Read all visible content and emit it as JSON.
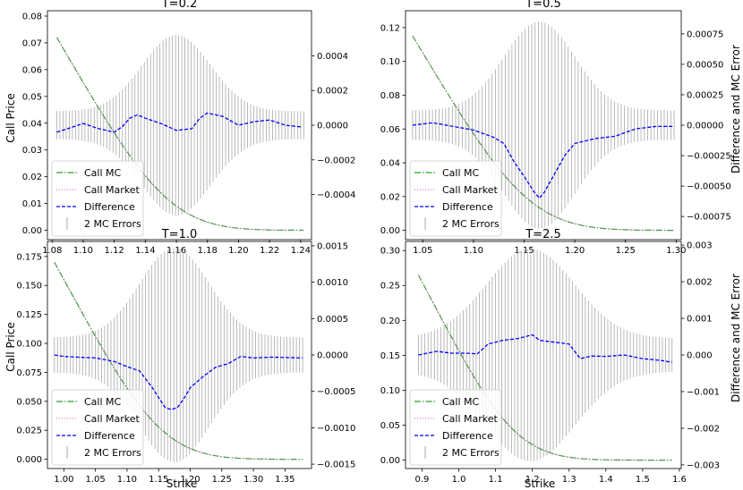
{
  "figure": {
    "left_ylabel": "Call Price",
    "right_ylabel": "Difference and MC Error",
    "xlabel": "Strike"
  },
  "legend": [
    {
      "key": "call_mc",
      "label": "Call MC",
      "color": "#2ca02c",
      "style": "dashdot"
    },
    {
      "key": "call_market",
      "label": "Call Market",
      "color": "#e377c2",
      "style": "dotted"
    },
    {
      "key": "difference",
      "label": "Difference",
      "color": "#0000ff",
      "style": "dashed"
    },
    {
      "key": "mc_errors",
      "label": "2 MC Errors",
      "color": "#808080",
      "style": "errorbar"
    }
  ],
  "chart_data": [
    {
      "type": "line",
      "title": "T=0.2",
      "xlabel": "",
      "ylabel": "Call Price",
      "y2label": "",
      "xlim": [
        1.077,
        1.247
      ],
      "xticks": [
        1.08,
        1.1,
        1.12,
        1.14,
        1.16,
        1.18,
        1.2,
        1.22,
        1.24
      ],
      "xtick_labels": [
        "1.08",
        "1.10",
        "1.12",
        "1.14",
        "1.16",
        "1.18",
        "1.20",
        "1.22",
        "1.24"
      ],
      "ylim": [
        -0.0035,
        0.082
      ],
      "yticks": [
        0.0,
        0.01,
        0.02,
        0.03,
        0.04,
        0.05,
        0.06,
        0.07,
        0.08
      ],
      "ytick_labels": [
        "0.00",
        "0.01",
        "0.02",
        "0.03",
        "0.04",
        "0.05",
        "0.06",
        "0.07",
        "0.08"
      ],
      "y2lim": [
        -0.00066,
        0.00066
      ],
      "y2ticks": [
        -0.0004,
        -0.0002,
        0.0,
        0.0002,
        0.0004
      ],
      "y2tick_labels": [
        "−0.0004",
        "−0.0002",
        "0.0000",
        "0.0002",
        "0.0004"
      ],
      "strike_range": [
        1.083,
        1.242
      ],
      "call_mc": {
        "s0": 1.155,
        "vol": 0.055,
        "T": 0.2
      },
      "error_bars": {
        "center": 1.16,
        "peak": 0.00052,
        "base": 8e-05,
        "width": 0.022
      },
      "difference": {
        "x": [
          1.083,
          1.09,
          1.1,
          1.11,
          1.12,
          1.125,
          1.13,
          1.135,
          1.14,
          1.15,
          1.16,
          1.17,
          1.175,
          1.18,
          1.19,
          1.2,
          1.21,
          1.22,
          1.23,
          1.24
        ],
        "y": [
          -4e-05,
          -2e-05,
          1e-05,
          -2e-05,
          -4e-05,
          -1e-05,
          4e-05,
          6e-05,
          4e-05,
          1e-05,
          -3e-05,
          -2e-05,
          4e-05,
          7e-05,
          5e-05,
          0.0,
          2e-05,
          3e-05,
          0.0,
          -1e-05
        ]
      }
    },
    {
      "type": "line",
      "title": "T=0.5",
      "xlabel": "",
      "ylabel": "",
      "y2label": "Difference and MC Error",
      "xlim": [
        1.033,
        1.305
      ],
      "xticks": [
        1.05,
        1.1,
        1.15,
        1.2,
        1.25,
        1.3
      ],
      "xtick_labels": [
        "1.05",
        "1.10",
        "1.15",
        "1.20",
        "1.25",
        "1.30"
      ],
      "ylim": [
        -0.0055,
        0.13
      ],
      "yticks": [
        0.0,
        0.02,
        0.04,
        0.06,
        0.08,
        0.1,
        0.12
      ],
      "ytick_labels": [
        "0.00",
        "0.02",
        "0.04",
        "0.06",
        "0.08",
        "0.10",
        "0.12"
      ],
      "y2lim": [
        -0.00094,
        0.00094
      ],
      "y2ticks": [
        -0.00075,
        -0.0005,
        -0.00025,
        0.0,
        0.00025,
        0.0005,
        0.00075
      ],
      "y2tick_labels": [
        "−0.00075",
        "−0.00050",
        "−0.00025",
        "0.00000",
        "0.00025",
        "0.00050",
        "0.00075"
      ],
      "strike_range": [
        1.04,
        1.298
      ],
      "call_mc": {
        "s0": 1.155,
        "vol": 0.055,
        "T": 0.5
      },
      "error_bars": {
        "center": 1.165,
        "peak": 0.00085,
        "base": 0.00012,
        "width": 0.035
      },
      "difference": {
        "x": [
          1.04,
          1.06,
          1.08,
          1.1,
          1.12,
          1.13,
          1.14,
          1.15,
          1.16,
          1.165,
          1.17,
          1.18,
          1.19,
          1.2,
          1.22,
          1.24,
          1.26,
          1.28,
          1.298
        ],
        "y": [
          0.0,
          2e-05,
          -1e-05,
          -4e-05,
          -0.0001,
          -0.00015,
          -0.0003,
          -0.00042,
          -0.00055,
          -0.0006,
          -0.00055,
          -0.0004,
          -0.00025,
          -0.00015,
          -0.00011,
          -9e-05,
          -3e-05,
          -1e-05,
          -1e-05
        ]
      }
    },
    {
      "type": "line",
      "title": "T=1.0",
      "xlabel": "Strike",
      "ylabel": "Call Price",
      "y2label": "",
      "xlim": [
        0.974,
        1.392
      ],
      "xticks": [
        1.0,
        1.05,
        1.1,
        1.15,
        1.2,
        1.25,
        1.3,
        1.35
      ],
      "xtick_labels": [
        "1.00",
        "1.05",
        "1.10",
        "1.15",
        "1.20",
        "1.25",
        "1.30",
        "1.35"
      ],
      "ylim": [
        -0.008,
        0.188
      ],
      "yticks": [
        0.0,
        0.025,
        0.05,
        0.075,
        0.1,
        0.125,
        0.15,
        0.175
      ],
      "ytick_labels": [
        "0.000",
        "0.025",
        "0.050",
        "0.075",
        "0.100",
        "0.125",
        "0.150",
        "0.175"
      ],
      "y2lim": [
        -0.00156,
        0.00156
      ],
      "y2ticks": [
        -0.0015,
        -0.001,
        -0.0005,
        0.0,
        0.0005,
        0.001,
        0.0015
      ],
      "y2tick_labels": [
        "−0.0015",
        "−0.0010",
        "−0.0005",
        "0.0000",
        "0.0005",
        "0.0010",
        "0.0015"
      ],
      "strike_range": [
        0.985,
        1.378
      ],
      "call_mc": {
        "s0": 1.155,
        "vol": 0.055,
        "T": 1.0
      },
      "error_bars": {
        "center": 1.175,
        "peak": 0.00147,
        "base": 0.00024,
        "width": 0.055
      },
      "difference": {
        "x": [
          0.985,
          1.0,
          1.02,
          1.05,
          1.08,
          1.1,
          1.12,
          1.14,
          1.16,
          1.17,
          1.18,
          1.19,
          1.2,
          1.22,
          1.24,
          1.26,
          1.28,
          1.3,
          1.33,
          1.378
        ],
        "y": [
          0.0,
          -2e-05,
          -3e-05,
          -4e-05,
          -9e-05,
          -0.00016,
          -0.00022,
          -0.00045,
          -0.00072,
          -0.00075,
          -0.00072,
          -0.0006,
          -0.00045,
          -0.0003,
          -0.00017,
          -0.00012,
          -2e-05,
          -4e-05,
          -3e-05,
          -4e-05
        ]
      }
    },
    {
      "type": "line",
      "title": "T=2.5",
      "xlabel": "Strike",
      "ylabel": "",
      "y2label": "Difference and MC Error",
      "xlim": [
        0.855,
        1.605
      ],
      "xticks": [
        0.9,
        1.0,
        1.1,
        1.2,
        1.3,
        1.4,
        1.5,
        1.6
      ],
      "xtick_labels": [
        "0.9",
        "1.0",
        "1.1",
        "1.2",
        "1.3",
        "1.4",
        "1.5",
        "1.6"
      ],
      "ylim": [
        -0.012,
        0.313
      ],
      "yticks": [
        0.0,
        0.05,
        0.1,
        0.15,
        0.2,
        0.25,
        0.3
      ],
      "ytick_labels": [
        "0.00",
        "0.05",
        "0.10",
        "0.15",
        "0.20",
        "0.25",
        "0.30"
      ],
      "y2lim": [
        -0.0031,
        0.0031
      ],
      "y2ticks": [
        -0.003,
        -0.002,
        -0.001,
        0.0,
        0.001,
        0.002,
        0.003
      ],
      "y2tick_labels": [
        "−0.003",
        "−0.002",
        "−0.001",
        "0.000",
        "0.001",
        "0.002",
        "0.003"
      ],
      "strike_range": [
        0.89,
        1.58
      ],
      "call_mc": {
        "s0": 1.155,
        "vol": 0.055,
        "T": 2.5
      },
      "error_bars": {
        "center": 1.195,
        "peak": 0.0029,
        "base": 0.00045,
        "width": 0.12
      },
      "difference": {
        "x": [
          0.89,
          0.94,
          0.98,
          1.02,
          1.05,
          1.08,
          1.12,
          1.16,
          1.2,
          1.22,
          1.26,
          1.3,
          1.33,
          1.36,
          1.4,
          1.45,
          1.5,
          1.55,
          1.58
        ],
        "y": [
          0.0,
          0.0001,
          5e-05,
          5e-05,
          3e-05,
          0.0003,
          0.0004,
          0.00045,
          0.00055,
          0.0004,
          0.00035,
          0.0003,
          -0.0001,
          -3e-05,
          -4e-05,
          0.0,
          -0.0001,
          -0.00015,
          -0.0002
        ]
      }
    }
  ]
}
